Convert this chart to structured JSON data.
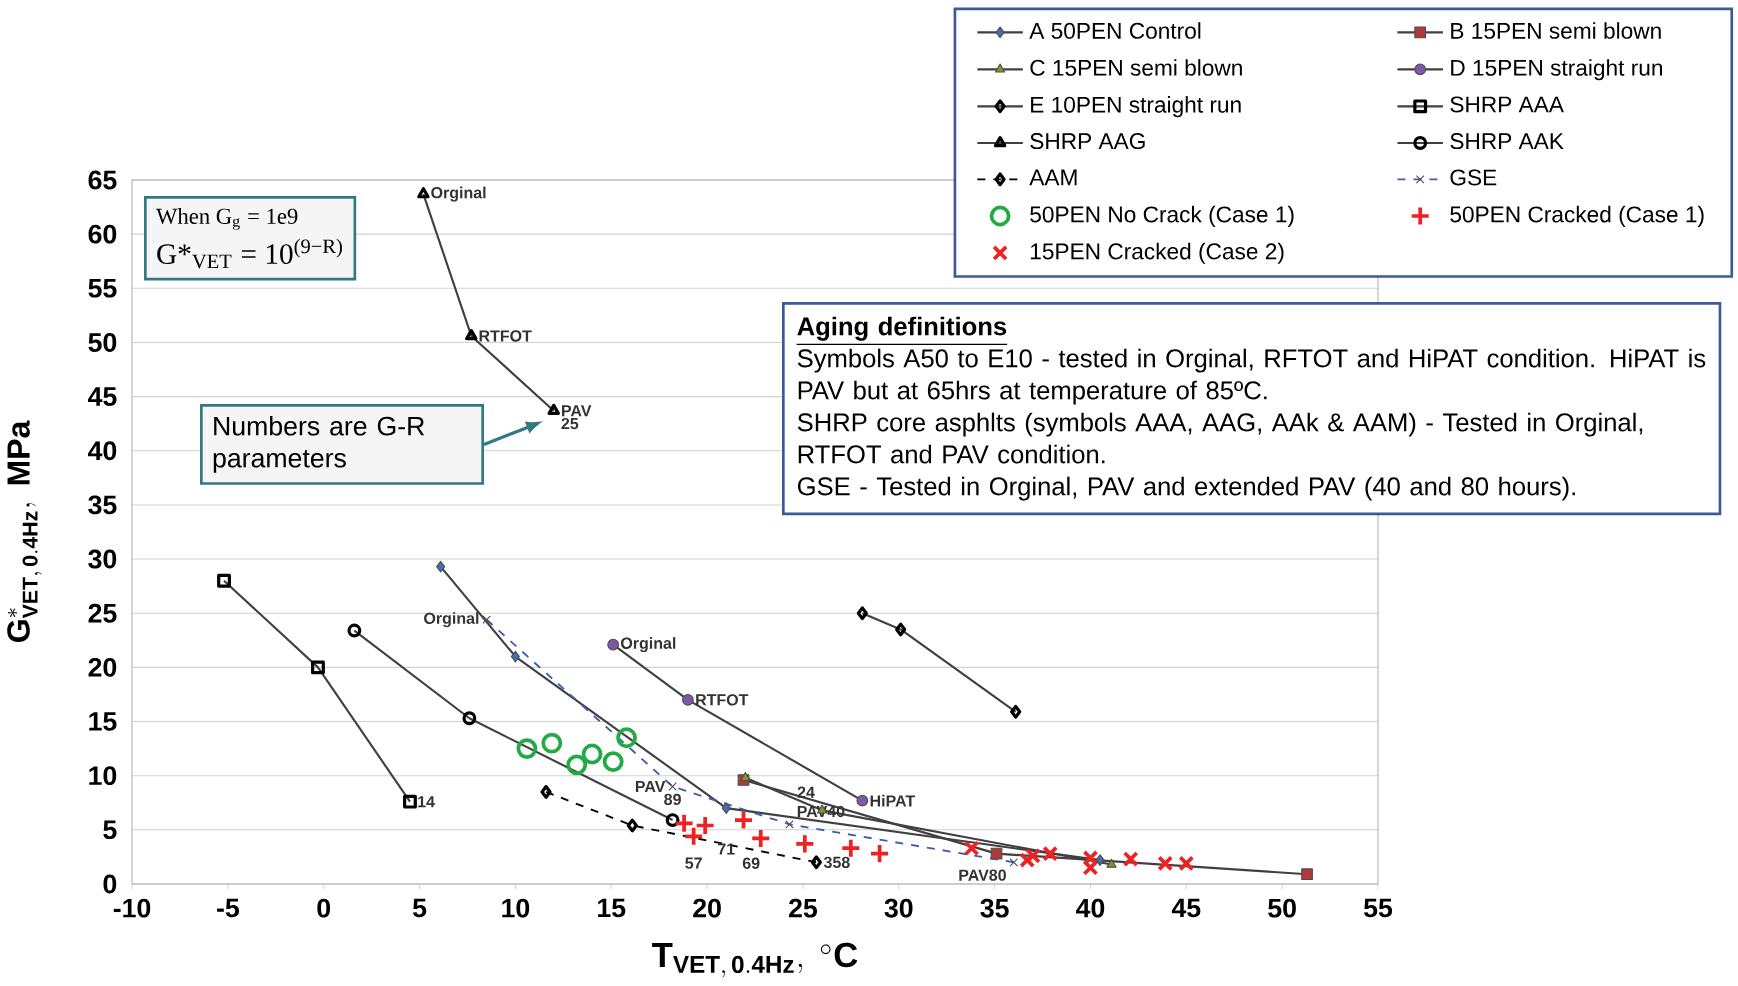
{
  "chart_data": {
    "type": "line",
    "xlabel": "\\mathbf{T_{VET,\\,0.4Hz},\\ {}^{\\circ}C}",
    "ylabel": "\\mathbf{G^{*}_{VET,\\,0.4Hz},\\ MPa}",
    "xlim": [
      -10,
      55
    ],
    "xticks": [
      -10,
      -5,
      0,
      5,
      10,
      15,
      20,
      25,
      30,
      35,
      40,
      45,
      50,
      55
    ],
    "ylim": [
      0,
      65
    ],
    "yticks": [
      0,
      5,
      10,
      15,
      20,
      25,
      30,
      35,
      40,
      45,
      50,
      55,
      60,
      65
    ],
    "grid": "y",
    "legend": "top right",
    "series": [
      {
        "name": "A 50PEN Control",
        "color": "#3f6fb5",
        "marker": "diamond",
        "x": [
          6.1,
          10.0,
          21.0,
          40.5
        ],
        "values": [
          29.3,
          21.0,
          7.0,
          2.2
        ]
      },
      {
        "name": "B 15PEN semi blown",
        "color": "#b03a3a",
        "marker": "square",
        "x": [
          21.9,
          35.1,
          51.3
        ],
        "values": [
          9.6,
          2.8,
          0.9
        ]
      },
      {
        "name": "C 15PEN semi blown",
        "color": "#7a9a2a",
        "marker": "triangle",
        "x": [
          22.0,
          26.0,
          41.1
        ],
        "values": [
          9.8,
          6.8,
          1.8
        ]
      },
      {
        "name": "D 15PEN straight run",
        "color": "#7a5aa8",
        "marker": "circle",
        "x": [
          15.1,
          19.0,
          28.1
        ],
        "values": [
          22.1,
          17.0,
          7.7
        ]
      },
      {
        "name": "E 10PEN straight run",
        "color": "#000000",
        "marker": "diamond",
        "x": [
          28.1,
          30.1,
          36.1
        ],
        "values": [
          25.0,
          23.5,
          15.9
        ]
      },
      {
        "name": "SHRP AAA",
        "color": "#000000",
        "marker": "square",
        "x": [
          -5.2,
          -0.3,
          4.5
        ],
        "values": [
          28.0,
          20.0,
          7.6
        ]
      },
      {
        "name": "SHRP AAG",
        "color": "#000000",
        "marker": "triangle",
        "x": [
          5.2,
          7.7,
          12.0
        ],
        "values": [
          63.7,
          50.6,
          43.7
        ]
      },
      {
        "name": "SHRP AAK",
        "color": "#000000",
        "marker": "circle",
        "x": [
          1.6,
          7.6,
          18.2
        ],
        "values": [
          23.4,
          15.3,
          5.9
        ]
      },
      {
        "name": "AAM",
        "color": "#000000",
        "marker": "diamond",
        "line_style": "dashed",
        "x": [
          11.6,
          16.1,
          25.7
        ],
        "values": [
          8.5,
          5.4,
          2.0
        ]
      },
      {
        "name": "GSE",
        "color": "#3a5fb0",
        "marker": "cross",
        "line_style": "dashed",
        "x": [
          8.5,
          18.2,
          24.3,
          36.0
        ],
        "values": [
          24.4,
          9.0,
          5.5,
          2.0
        ]
      },
      {
        "name": "50PEN No Crack (Case 1)",
        "type": "scatter",
        "color": "#22aa44",
        "marker": "circle",
        "x": [
          10.6,
          11.9,
          13.2,
          14.0,
          15.1,
          15.8
        ],
        "values": [
          12.5,
          13.0,
          11.0,
          12.0,
          11.3,
          13.5
        ]
      },
      {
        "name": "50PEN Cracked (Case 1)",
        "type": "scatter",
        "color": "#ee2222",
        "marker": "plus",
        "x": [
          18.8,
          19.3,
          19.9,
          21.9,
          22.8,
          25.1,
          27.5,
          29.0
        ],
        "values": [
          5.6,
          4.4,
          5.4,
          5.9,
          4.2,
          3.7,
          3.3,
          2.8
        ]
      },
      {
        "name": "15PEN Cracked (Case 2)",
        "type": "scatter",
        "color": "#ee2222",
        "marker": "cross",
        "x": [
          33.8,
          36.7,
          37.0,
          37.9,
          40.0,
          40.0,
          42.1,
          43.9,
          45.0
        ],
        "values": [
          3.3,
          2.2,
          2.6,
          2.8,
          2.4,
          1.5,
          2.3,
          1.9,
          1.9
        ]
      }
    ],
    "annotations": [
      "When G$_{g}$ = 1e9",
      "G*$_{VET}$ = 10$^{(9−R)}$",
      "Numbers are G-R parameters",
      "Aging definitions",
      "Symbols A50 to E10 - tested in Orginal, RFTOT and HiPAT condition.  HiPAT is  PAV but at 65hrs at temperature of 85ºC.",
      "SHRP core asphlts (symbols AAA, AAG, AAk & AAM) - Tested in Orginal, RTFOT and PAV condition.",
      "GSE - Tested in Orginal, PAV and extended PAV (40 and 80 hours).",
      {
        "text": "Orginal",
        "x": 5.2,
        "y": 63.7
      },
      {
        "text": "RTFOT",
        "x": 7.7,
        "y": 50.6
      },
      {
        "text": "PAV",
        "x": 12.0,
        "y": 43.7
      },
      {
        "text": "25",
        "x": 12.0,
        "y": 43.7
      },
      {
        "text": "14",
        "x": 4.5,
        "y": 7.6
      },
      {
        "text": "Orginal",
        "x": 15.1,
        "y": 22.1
      },
      {
        "text": "RTFOT",
        "x": 19.0,
        "y": 17.0
      },
      {
        "text": "HiPAT",
        "x": 28.1,
        "y": 7.7
      },
      {
        "text": "Orginal",
        "x": 8.5,
        "y": 24.4
      },
      {
        "text": "PAV",
        "x": 18.2,
        "y": 9.0
      },
      {
        "text": "89",
        "x": 18.2,
        "y": 9.0
      },
      {
        "text": "PAV40",
        "x": 24.3,
        "y": 5.5
      },
      {
        "text": "PAV80",
        "x": 36.0,
        "y": 2.0
      },
      {
        "text": "57",
        "x": 19.3,
        "y": 3.1
      },
      {
        "text": "71",
        "x": 21.0,
        "y": 4.4
      },
      {
        "text": "69",
        "x": 22.3,
        "y": 3.1
      },
      {
        "text": "24",
        "x": 26.0,
        "y": 7.3
      },
      {
        "text": "358",
        "x": 25.7,
        "y": 2.0
      }
    ]
  }
}
